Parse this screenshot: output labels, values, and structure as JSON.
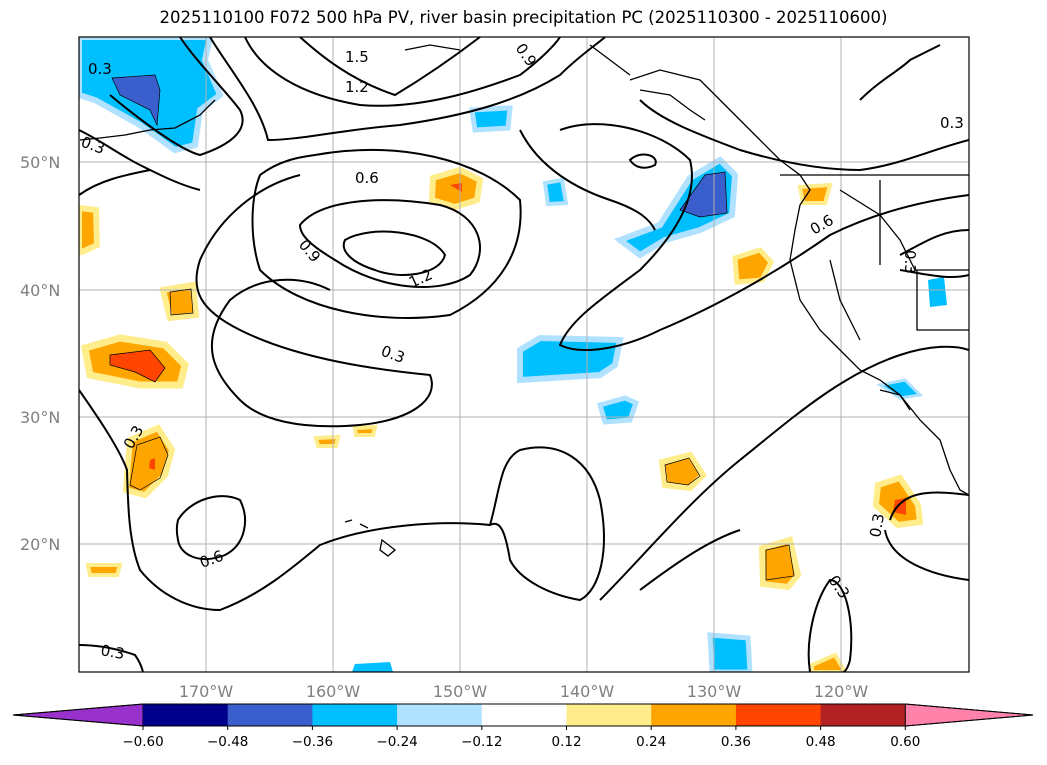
{
  "title": "2025110100 F072 500 hPa PV, river basin precipitation PC (2025110300 - 2025110600)",
  "lat_ticks": [
    "50°N",
    "40°N",
    "30°N",
    "20°N"
  ],
  "lon_ticks": [
    "170°W",
    "160°W",
    "150°W",
    "140°W",
    "130°W",
    "120°W"
  ],
  "contour_labels": [
    "0.3",
    "0.3",
    "1.5",
    "1.2",
    "0.9",
    "0.6",
    "0.9",
    "1.2",
    "0.3",
    "0.3",
    "0.6",
    "0.3",
    "0.3",
    "0.3",
    "0.3",
    "0.6",
    "0.3"
  ],
  "colorbar": {
    "ticks": [
      "−0.60",
      "−0.48",
      "−0.36",
      "−0.24",
      "−0.12",
      "0.12",
      "0.24",
      "0.36",
      "0.48",
      "0.60"
    ],
    "colors": [
      "#9932cc",
      "#00008b",
      "#3a5fcd",
      "#00bfff",
      "#b0e2ff",
      "#ffffff",
      "#ffec8b",
      "#ffa500",
      "#ff4500",
      "#b22222",
      "#ff82ab"
    ]
  }
}
